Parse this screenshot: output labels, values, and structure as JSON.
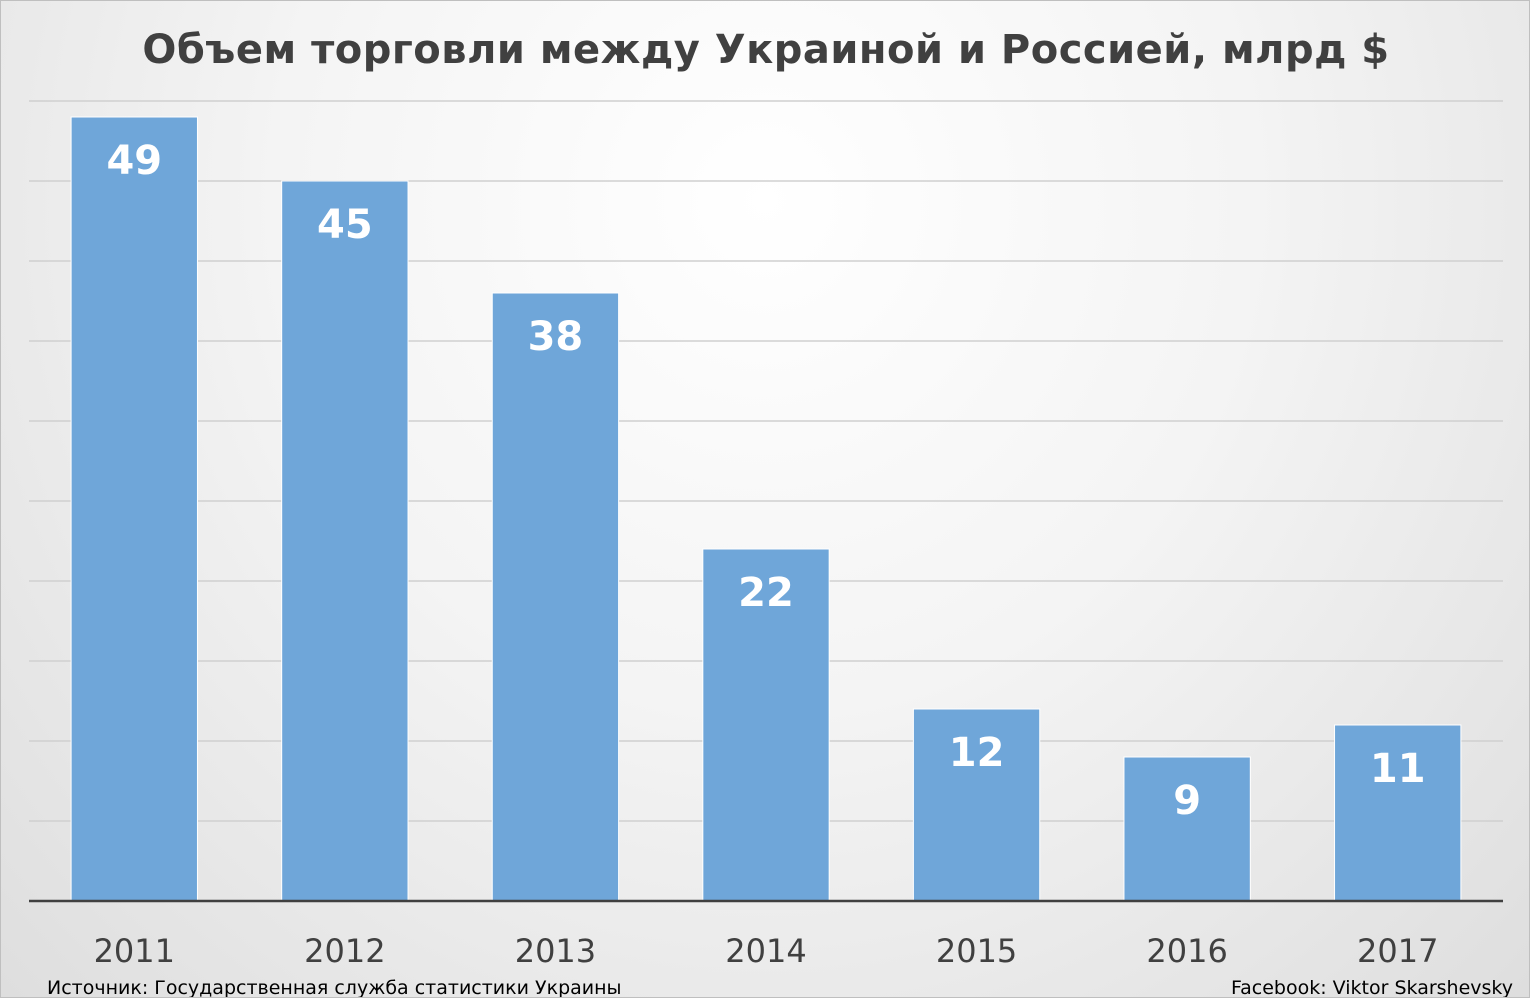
{
  "chart_data": {
    "type": "bar",
    "title": "Объем торговли между Украиной и Россией, млрд $",
    "categories": [
      "2011",
      "2012",
      "2013",
      "2014",
      "2015",
      "2016",
      "2017"
    ],
    "values": [
      49,
      45,
      38,
      22,
      12,
      9,
      11
    ],
    "data_labels": [
      "49",
      "45",
      "38",
      "22",
      "12",
      "9",
      "11"
    ],
    "xlabel": "",
    "ylabel": "",
    "ylim": [
      0,
      50
    ],
    "y_gridline_step": 5,
    "y_axis_labels_shown": false,
    "grid": true,
    "legend": "none",
    "bar_color": "#6fa6d9",
    "data_label_color": "#ffffff"
  },
  "footer": {
    "source": "Источник: Государственная служба статистики Украины",
    "credit": "Facebook: Viktor Skarshevsky"
  }
}
